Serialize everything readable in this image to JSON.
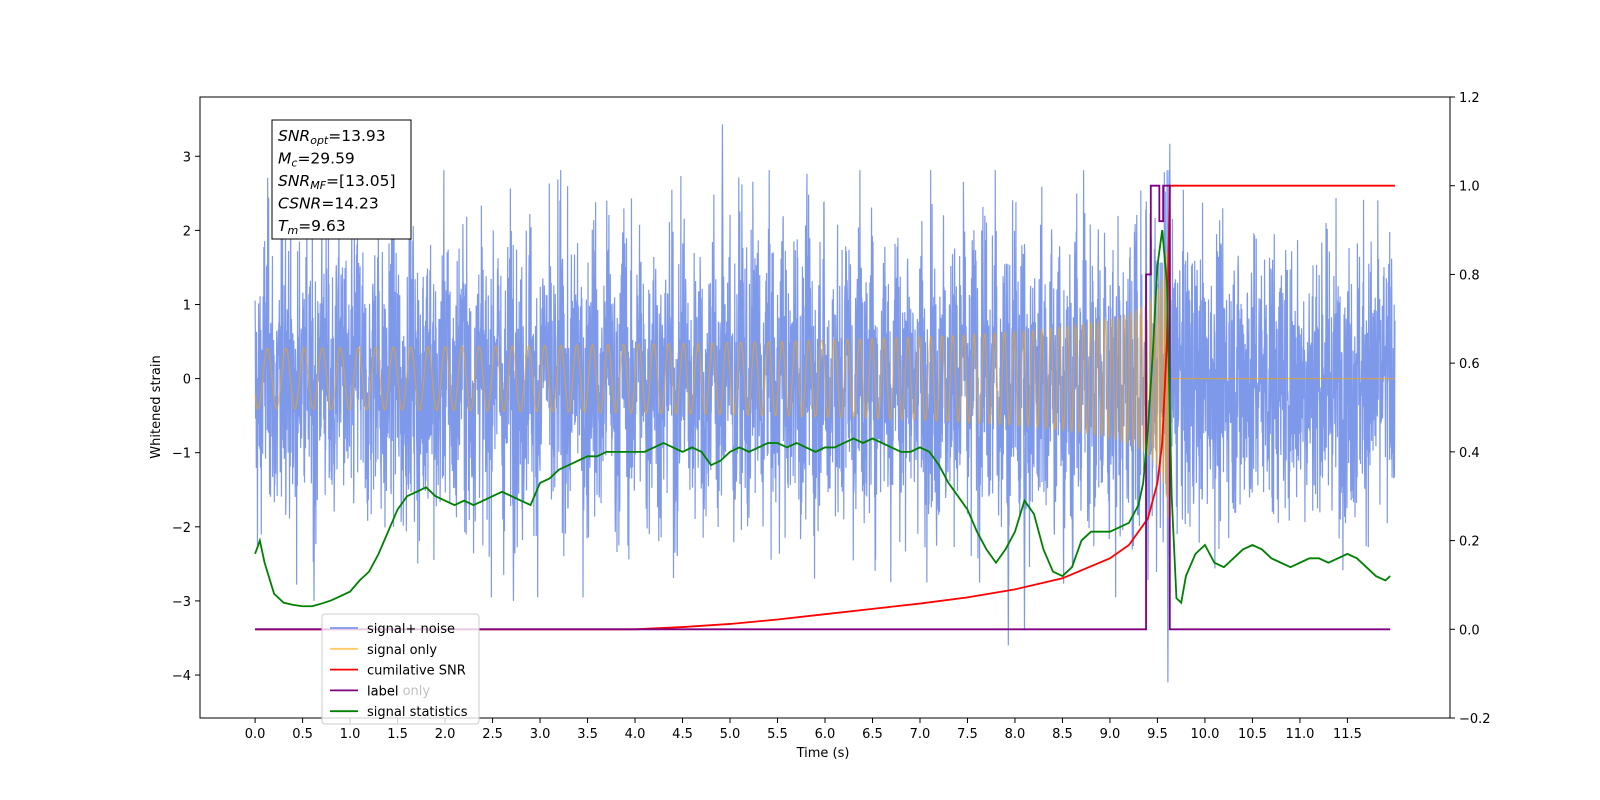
{
  "chart_data": {
    "type": "line",
    "xlabel": "Time (s)",
    "ylabel": "Whitened strain",
    "xlim": [
      -0.58,
      12.58
    ],
    "ylim": [
      -4.58,
      3.8
    ],
    "y2lim": [
      -0.2,
      1.2
    ],
    "xticks": [
      "0.0",
      "0.5",
      "1.0",
      "1.5",
      "2.0",
      "2.5",
      "3.0",
      "3.5",
      "4.0",
      "4.5",
      "5.0",
      "5.5",
      "6.0",
      "6.5",
      "7.0",
      "7.5",
      "8.0",
      "8.5",
      "9.0",
      "9.5",
      "10.0",
      "10.5",
      "11.0",
      "11.5"
    ],
    "yticks": [
      "3",
      "2",
      "1",
      "0",
      "−1",
      "−2",
      "−3",
      "−4"
    ],
    "y2ticks": [
      "1.2",
      "1.0",
      "0.8",
      "0.6",
      "0.4",
      "0.2",
      "0.0",
      "−0.2"
    ],
    "annotation": [
      {
        "sym": "SNR",
        "sub": "opt",
        "val": "=13.93"
      },
      {
        "sym": "M",
        "sub": "c",
        "val": "=29.59"
      },
      {
        "sym": "SNR",
        "sub": "MF",
        "val": "=[13.05]"
      },
      {
        "sym": "CSNR",
        "sub": "",
        "val": "=14.23"
      },
      {
        "sym": "T",
        "sub": "m",
        "val": "=9.63"
      }
    ],
    "legend_position": "lower-left",
    "series": [
      {
        "name": "signal+ noise",
        "axis": "left",
        "color": "#7793e8",
        "kind": "noise",
        "x_range": [
          0.0,
          12.0
        ],
        "amplitude_envelope": [
          -3.6,
          3.43
        ],
        "extremes": [
          {
            "x": 4.92,
            "y": 3.43
          },
          {
            "x": 9.63,
            "y": 3.17
          },
          {
            "x": 9.61,
            "y": -4.1
          },
          {
            "x": 7.93,
            "y": -3.6
          },
          {
            "x": 8.1,
            "y": -3.4
          },
          {
            "x": 0.62,
            "y": -3.0
          },
          {
            "x": 2.72,
            "y": -3.0
          }
        ]
      },
      {
        "name": "signal only",
        "axis": "left",
        "color": "#ffa500",
        "kind": "chirp",
        "x_range": [
          0.0,
          12.0
        ],
        "merger_time": 9.63,
        "peak_amplitude": 2.85
      },
      {
        "name": "cumilative SNR",
        "axis": "right",
        "color": "#ff0000",
        "x": [
          0.0,
          1.0,
          2.0,
          3.0,
          3.5,
          4.0,
          4.5,
          5.0,
          5.5,
          6.0,
          6.5,
          7.0,
          7.5,
          8.0,
          8.5,
          9.0,
          9.2,
          9.4,
          9.5,
          9.55,
          9.6,
          9.63,
          12.0
        ],
        "y": [
          0.0,
          0.0,
          0.0,
          0.0,
          0.0,
          0.0,
          0.005,
          0.012,
          0.022,
          0.034,
          0.046,
          0.058,
          0.072,
          0.09,
          0.115,
          0.16,
          0.19,
          0.25,
          0.33,
          0.42,
          0.65,
          1.0,
          1.0
        ]
      },
      {
        "name": "label",
        "axis": "right",
        "color": "#800080",
        "x": [
          0.0,
          9.38,
          9.38,
          9.43,
          9.43,
          9.52,
          9.52,
          9.56,
          9.56,
          9.63,
          9.63,
          11.95
        ],
        "y": [
          0.0,
          0.0,
          0.8,
          0.8,
          1.0,
          1.0,
          0.92,
          0.92,
          1.0,
          1.0,
          0.0,
          0.0
        ]
      },
      {
        "name": "label only",
        "axis": "right",
        "color": "#ffa500",
        "kind": "hidden-behind-legend"
      },
      {
        "name": "signal statistics",
        "axis": "right",
        "color": "#008000",
        "x": [
          0.0,
          0.05,
          0.1,
          0.2,
          0.3,
          0.4,
          0.5,
          0.6,
          0.7,
          0.8,
          0.9,
          1.0,
          1.1,
          1.2,
          1.3,
          1.4,
          1.5,
          1.6,
          1.7,
          1.8,
          1.9,
          2.0,
          2.1,
          2.2,
          2.3,
          2.4,
          2.5,
          2.6,
          2.7,
          2.8,
          2.9,
          3.0,
          3.1,
          3.2,
          3.3,
          3.4,
          3.5,
          3.6,
          3.7,
          3.8,
          3.9,
          4.0,
          4.1,
          4.2,
          4.3,
          4.4,
          4.5,
          4.6,
          4.7,
          4.8,
          4.9,
          5.0,
          5.1,
          5.2,
          5.3,
          5.4,
          5.5,
          5.6,
          5.7,
          5.8,
          5.9,
          6.0,
          6.1,
          6.2,
          6.3,
          6.4,
          6.5,
          6.6,
          6.7,
          6.8,
          6.9,
          7.0,
          7.1,
          7.2,
          7.3,
          7.4,
          7.5,
          7.6,
          7.7,
          7.8,
          7.9,
          8.0,
          8.1,
          8.2,
          8.3,
          8.4,
          8.5,
          8.6,
          8.7,
          8.8,
          8.9,
          9.0,
          9.1,
          9.2,
          9.3,
          9.35,
          9.4,
          9.45,
          9.5,
          9.55,
          9.6,
          9.65,
          9.7,
          9.75,
          9.8,
          9.9,
          10.0,
          10.1,
          10.2,
          10.3,
          10.4,
          10.5,
          10.6,
          10.7,
          10.8,
          10.9,
          11.0,
          11.1,
          11.2,
          11.3,
          11.4,
          11.5,
          11.6,
          11.7,
          11.8,
          11.9,
          11.95
        ],
        "y": [
          0.17,
          0.2,
          0.15,
          0.08,
          0.06,
          0.055,
          0.052,
          0.052,
          0.058,
          0.065,
          0.075,
          0.085,
          0.11,
          0.13,
          0.17,
          0.22,
          0.27,
          0.3,
          0.31,
          0.32,
          0.3,
          0.29,
          0.28,
          0.29,
          0.28,
          0.29,
          0.3,
          0.31,
          0.3,
          0.29,
          0.28,
          0.33,
          0.34,
          0.36,
          0.37,
          0.38,
          0.39,
          0.39,
          0.4,
          0.4,
          0.4,
          0.4,
          0.4,
          0.41,
          0.42,
          0.41,
          0.4,
          0.41,
          0.4,
          0.37,
          0.38,
          0.4,
          0.41,
          0.4,
          0.41,
          0.42,
          0.42,
          0.41,
          0.42,
          0.41,
          0.4,
          0.41,
          0.41,
          0.42,
          0.43,
          0.42,
          0.43,
          0.42,
          0.41,
          0.4,
          0.4,
          0.41,
          0.4,
          0.37,
          0.33,
          0.3,
          0.27,
          0.22,
          0.18,
          0.15,
          0.18,
          0.22,
          0.29,
          0.26,
          0.18,
          0.13,
          0.12,
          0.14,
          0.2,
          0.22,
          0.22,
          0.22,
          0.23,
          0.24,
          0.28,
          0.33,
          0.45,
          0.62,
          0.82,
          0.9,
          0.78,
          0.3,
          0.07,
          0.06,
          0.12,
          0.17,
          0.19,
          0.15,
          0.14,
          0.16,
          0.18,
          0.19,
          0.18,
          0.16,
          0.15,
          0.14,
          0.15,
          0.16,
          0.16,
          0.15,
          0.16,
          0.17,
          0.16,
          0.14,
          0.12,
          0.11,
          0.12
        ]
      }
    ]
  }
}
